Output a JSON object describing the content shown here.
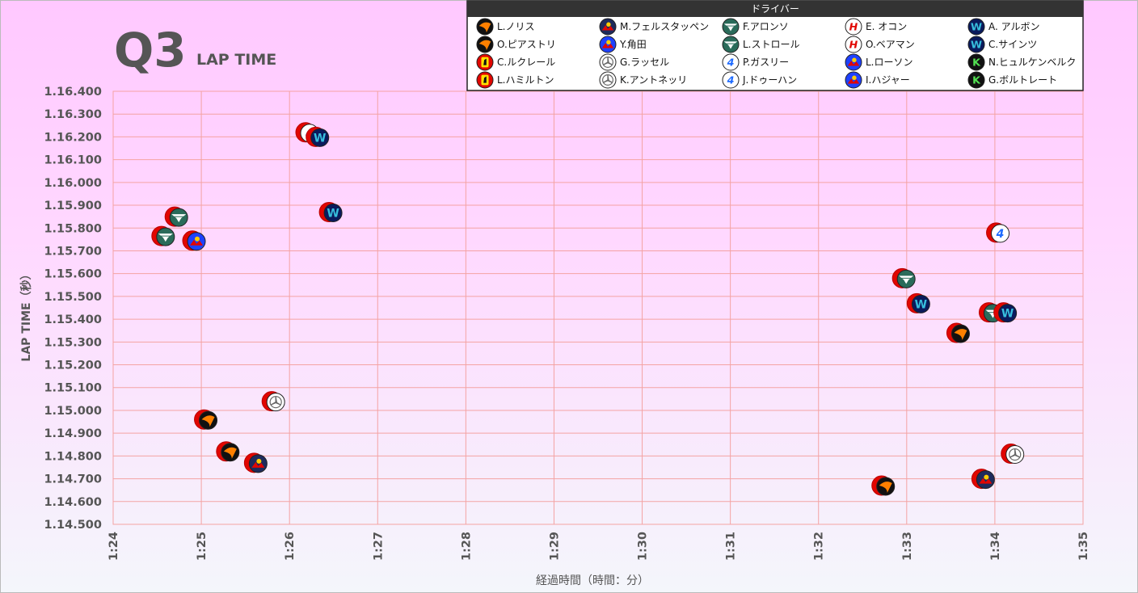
{
  "title": {
    "main": "Q3",
    "sub": "LAP TIME"
  },
  "legend": {
    "title": "ドライバー",
    "items": [
      {
        "name": "L.ノリス",
        "team": "mclaren"
      },
      {
        "name": "M.フェルスタッペン",
        "team": "redbull"
      },
      {
        "name": "F.アロンソ",
        "team": "astonmartin"
      },
      {
        "name": "E. オコン",
        "team": "haas"
      },
      {
        "name": "A. アルボン",
        "team": "williams"
      },
      {
        "name": "O.ピアストリ",
        "team": "mclaren"
      },
      {
        "name": "Y.角田",
        "team": "racingbulls"
      },
      {
        "name": "L.ストロール",
        "team": "astonmartin"
      },
      {
        "name": "O.ベアマン",
        "team": "haas"
      },
      {
        "name": "C.サインツ",
        "team": "williams"
      },
      {
        "name": "C.ルクレール",
        "team": "ferrari"
      },
      {
        "name": "G.ラッセル",
        "team": "mercedes"
      },
      {
        "name": "P.ガスリー",
        "team": "alpine"
      },
      {
        "name": "L.ローソン",
        "team": "racingbulls"
      },
      {
        "name": "N.ヒュルケンベルク",
        "team": "sauber"
      },
      {
        "name": "L.ハミルトン",
        "team": "ferrari"
      },
      {
        "name": "K.アントネッリ",
        "team": "mercedes"
      },
      {
        "name": "J.ドゥーハン",
        "team": "alpine"
      },
      {
        "name": "I.ハジャー",
        "team": "racingbulls"
      },
      {
        "name": "G.ボルトレート",
        "team": "sauber"
      }
    ]
  },
  "team_icons": {
    "mclaren": {
      "bg": "#111111",
      "fg": "#ff8000",
      "glyph": "swoosh"
    },
    "redbull": {
      "bg": "#1e2b5c",
      "fg": "#e10600",
      "glyph": "bull"
    },
    "racingbulls": {
      "bg": "#1e41ff",
      "fg": "#e10600",
      "glyph": "bull"
    },
    "astonmartin": {
      "bg": "#2a6b5a",
      "fg": "#ffffff",
      "glyph": "wings"
    },
    "haas": {
      "bg": "#ffffff",
      "fg": "#e10600",
      "glyph": "H"
    },
    "williams": {
      "bg": "#0a1a5c",
      "fg": "#37bedd",
      "glyph": "W"
    },
    "ferrari": {
      "bg": "#e10600",
      "fg": "#ffe000",
      "glyph": "horse"
    },
    "mercedes": {
      "bg": "#ffffff",
      "fg": "#666666",
      "glyph": "star"
    },
    "alpine": {
      "bg": "#ffffff",
      "fg": "#1e6bff",
      "glyph": "A"
    },
    "sauber": {
      "bg": "#111111",
      "fg": "#52e252",
      "glyph": "K"
    }
  },
  "chart_data": {
    "type": "scatter",
    "xlabel": "経過時間（時間：分）",
    "ylabel": "LAP TIME（秒）",
    "x_unit": "elapsed time (h:mm)",
    "xlim": [
      "1:24",
      "1:35"
    ],
    "ylim": [
      1.145,
      1.164
    ],
    "x_ticks": [
      "1:24",
      "1:25",
      "1:26",
      "1:27",
      "1:28",
      "1:29",
      "1:30",
      "1:31",
      "1:32",
      "1:33",
      "1:34",
      "1:35"
    ],
    "y_ticks": [
      "1.14.500",
      "1.14.600",
      "1.14.700",
      "1.14.800",
      "1.14.900",
      "1.15.000",
      "1.15.100",
      "1.15.200",
      "1.15.300",
      "1.15.400",
      "1.15.500",
      "1.15.600",
      "1.15.700",
      "1.15.800",
      "1.15.900",
      "1.16.000",
      "1.16.100",
      "1.16.200",
      "1.16.300",
      "1.16.400"
    ],
    "grid": true,
    "legend_position": "top-right",
    "points": [
      {
        "team": "astonmartin",
        "x": "1:24:34",
        "y": 1.15765
      },
      {
        "team": "astonmartin",
        "x": "1:24:43",
        "y": 1.1585
      },
      {
        "team": "racingbulls",
        "x": "1:24:55",
        "y": 1.15745
      },
      {
        "team": "mclaren",
        "x": "1:25:03",
        "y": 1.1496
      },
      {
        "team": "mclaren",
        "x": "1:25:18",
        "y": 1.1482
      },
      {
        "team": "redbull",
        "x": "1:25:37",
        "y": 1.1477
      },
      {
        "team": "mercedes",
        "x": "1:25:49",
        "y": 1.1504
      },
      {
        "team": "alpine",
        "x": "1:26:12",
        "y": 1.1622
      },
      {
        "team": "williams",
        "x": "1:26:19",
        "y": 1.162
      },
      {
        "team": "williams",
        "x": "1:26:28",
        "y": 1.1587
      },
      {
        "team": "mclaren",
        "x": "1:32:44",
        "y": 1.1467
      },
      {
        "team": "astonmartin",
        "x": "1:32:58",
        "y": 1.1558
      },
      {
        "team": "williams",
        "x": "1:33:08",
        "y": 1.1547
      },
      {
        "team": "mclaren",
        "x": "1:33:35",
        "y": 1.1534
      },
      {
        "team": "redbull",
        "x": "1:33:52",
        "y": 1.147
      },
      {
        "team": "astonmartin",
        "x": "1:33:57",
        "y": 1.1543
      },
      {
        "team": "alpine",
        "x": "1:34:02",
        "y": 1.1578
      },
      {
        "team": "williams",
        "x": "1:34:07",
        "y": 1.1543
      },
      {
        "team": "mercedes",
        "x": "1:34:12",
        "y": 1.1481
      }
    ]
  }
}
